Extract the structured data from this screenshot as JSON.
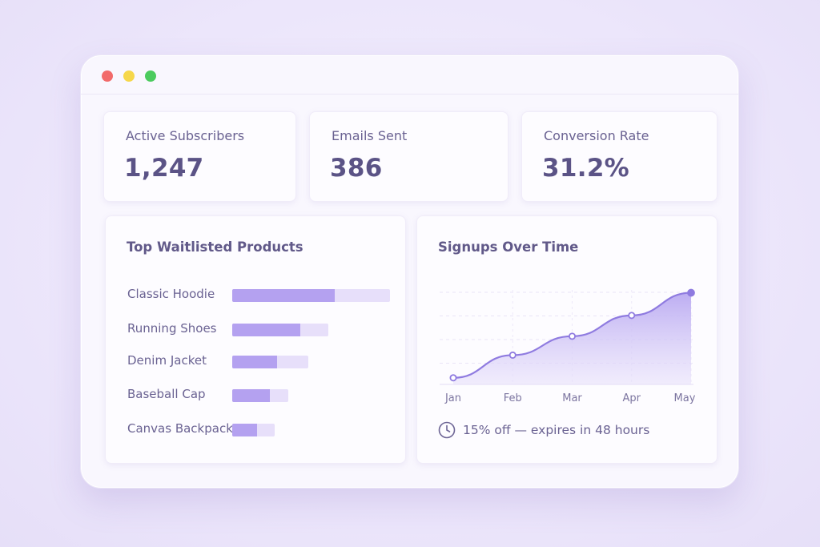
{
  "window": {
    "controls": [
      "close",
      "minimize",
      "maximize"
    ]
  },
  "stats": [
    {
      "label": "Active Subscribers",
      "value": "1,247"
    },
    {
      "label": "Emails Sent",
      "value": "386"
    },
    {
      "label": "Conversion Rate",
      "value": "31.2%"
    }
  ],
  "products_panel": {
    "title": "Top Waitlisted Products",
    "items": [
      {
        "label": "Classic Hoodie",
        "fill": 0.65
      },
      {
        "label": "Running Shoes",
        "fill": 0.71
      },
      {
        "label": "Denim Jacket",
        "fill": 0.59
      },
      {
        "label": "Baseball Cap",
        "fill": 0.67
      },
      {
        "label": "Canvas Backpack",
        "fill": 0.59
      }
    ],
    "track_relative": [
      1.0,
      0.61,
      0.49,
      0.36,
      0.27
    ]
  },
  "signups_panel": {
    "title": "Signups Over Time",
    "footer": "15% off — expires in 48 hours"
  },
  "chart_data": {
    "type": "area",
    "title": "Signups Over Time",
    "categories": [
      "Jan",
      "Feb",
      "Mar",
      "Apr",
      "May"
    ],
    "points": [
      {
        "x": 0.0,
        "y": 0.07
      },
      {
        "x": 1.0,
        "y": 0.31
      },
      {
        "x": 2.0,
        "y": 0.51
      },
      {
        "x": 3.0,
        "y": 0.73
      },
      {
        "x": 4.0,
        "y": 0.97
      }
    ],
    "ylim": [
      0,
      1
    ],
    "grid": true,
    "colors": {
      "line": "#8f7be0",
      "fill": "#b9a9f1",
      "marker": "#8f7be0"
    }
  }
}
